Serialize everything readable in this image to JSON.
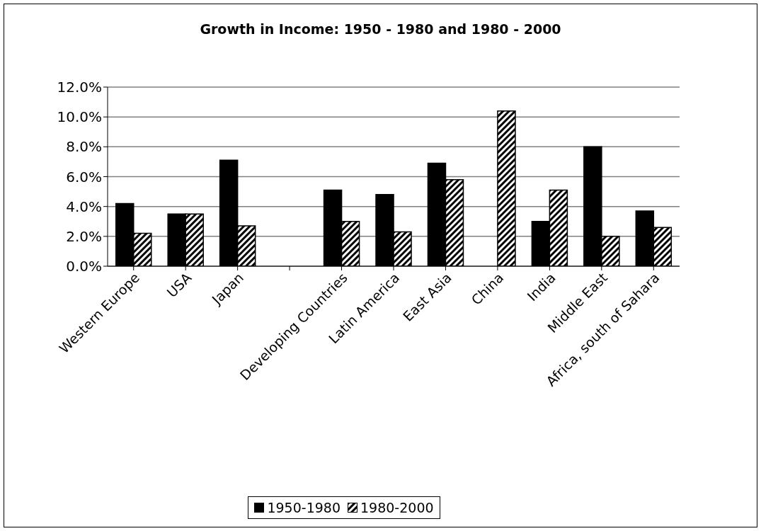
{
  "chart_data": {
    "type": "bar",
    "title": "Growth in Income: 1950 - 1980 and 1980 - 2000",
    "categories": [
      "Western Europe",
      "USA",
      "Japan",
      null,
      "Developing Countries",
      "Latin America",
      "East Asia",
      "China",
      "India",
      "Middle East",
      "Africa, south of Sahara"
    ],
    "series": [
      {
        "name": "1950-1980",
        "color": "#000000",
        "values": [
          4.2,
          3.5,
          7.1,
          null,
          5.1,
          4.8,
          6.9,
          null,
          3.0,
          8.0,
          3.7
        ]
      },
      {
        "name": "1980-2000",
        "color": "#000000",
        "values": [
          2.2,
          3.5,
          2.7,
          null,
          3.0,
          2.3,
          5.8,
          10.4,
          5.1,
          2.0,
          2.6
        ]
      }
    ],
    "ylim": [
      0,
      12
    ],
    "yticks": [
      {
        "value": 0,
        "label": "0.0%"
      },
      {
        "value": 2,
        "label": "2.0%"
      },
      {
        "value": 4,
        "label": "4.0%"
      },
      {
        "value": 6,
        "label": "6.0%"
      },
      {
        "value": 8,
        "label": "8.0%"
      },
      {
        "value": 10,
        "label": "10.0%"
      },
      {
        "value": 12,
        "label": "12.0%"
      }
    ],
    "grid": "y",
    "legend": "bottom"
  }
}
